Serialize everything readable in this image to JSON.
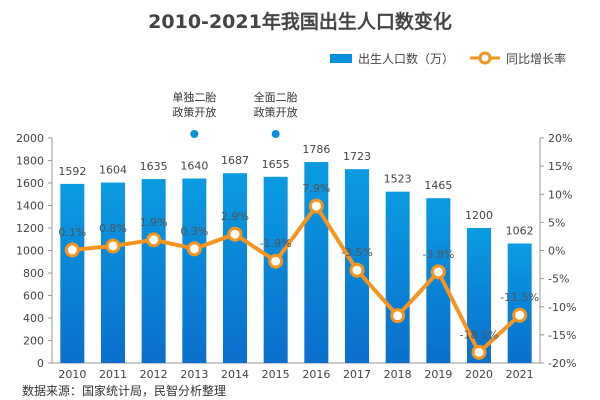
{
  "chart_data": {
    "type": "bar+line",
    "title": "2010-2021年我国出生人口数变化",
    "categories": [
      "2010",
      "2011",
      "2012",
      "2013",
      "2014",
      "2015",
      "2016",
      "2017",
      "2018",
      "2019",
      "2020",
      "2021"
    ],
    "series": [
      {
        "name": "出生人口数（万）",
        "type": "bar",
        "axis": "left",
        "color": "#0a8fdc",
        "values": [
          1592,
          1604,
          1635,
          1640,
          1687,
          1655,
          1786,
          1723,
          1523,
          1465,
          1200,
          1062
        ]
      },
      {
        "name": "同比增长率",
        "type": "line",
        "axis": "right",
        "color": "#f7941d",
        "values": [
          0.1,
          0.8,
          1.9,
          0.3,
          2.9,
          -1.9,
          7.9,
          -3.5,
          -11.6,
          -3.8,
          -18.1,
          -11.5
        ],
        "labels": [
          "0.1%",
          "0.8%",
          "1.9%",
          "0.3%",
          "2.9%",
          "-1.9%",
          "7.9%",
          "-3.5%",
          null,
          "-3.8%",
          "-18.1%",
          "-11.5%"
        ]
      }
    ],
    "y_left": {
      "range": [
        0,
        2000
      ],
      "ticks": [
        "0",
        "200",
        "400",
        "600",
        "800",
        "1000",
        "1200",
        "1400",
        "1600",
        "1800",
        "2000"
      ]
    },
    "y_right": {
      "range": [
        -20,
        20
      ],
      "ticks": [
        "-20%",
        "-15%",
        "-10%",
        "-5%",
        "0%",
        "5%",
        "10%",
        "15%",
        "20%"
      ]
    },
    "legend": "top-right",
    "grid": false,
    "annotations": [
      {
        "category": "2013",
        "text": [
          "单独二胎",
          "政策开放"
        ]
      },
      {
        "category": "2015",
        "text": [
          "全面二胎",
          "政策开放"
        ]
      }
    ],
    "source": "数据来源：国家统计局，民智分析整理"
  }
}
